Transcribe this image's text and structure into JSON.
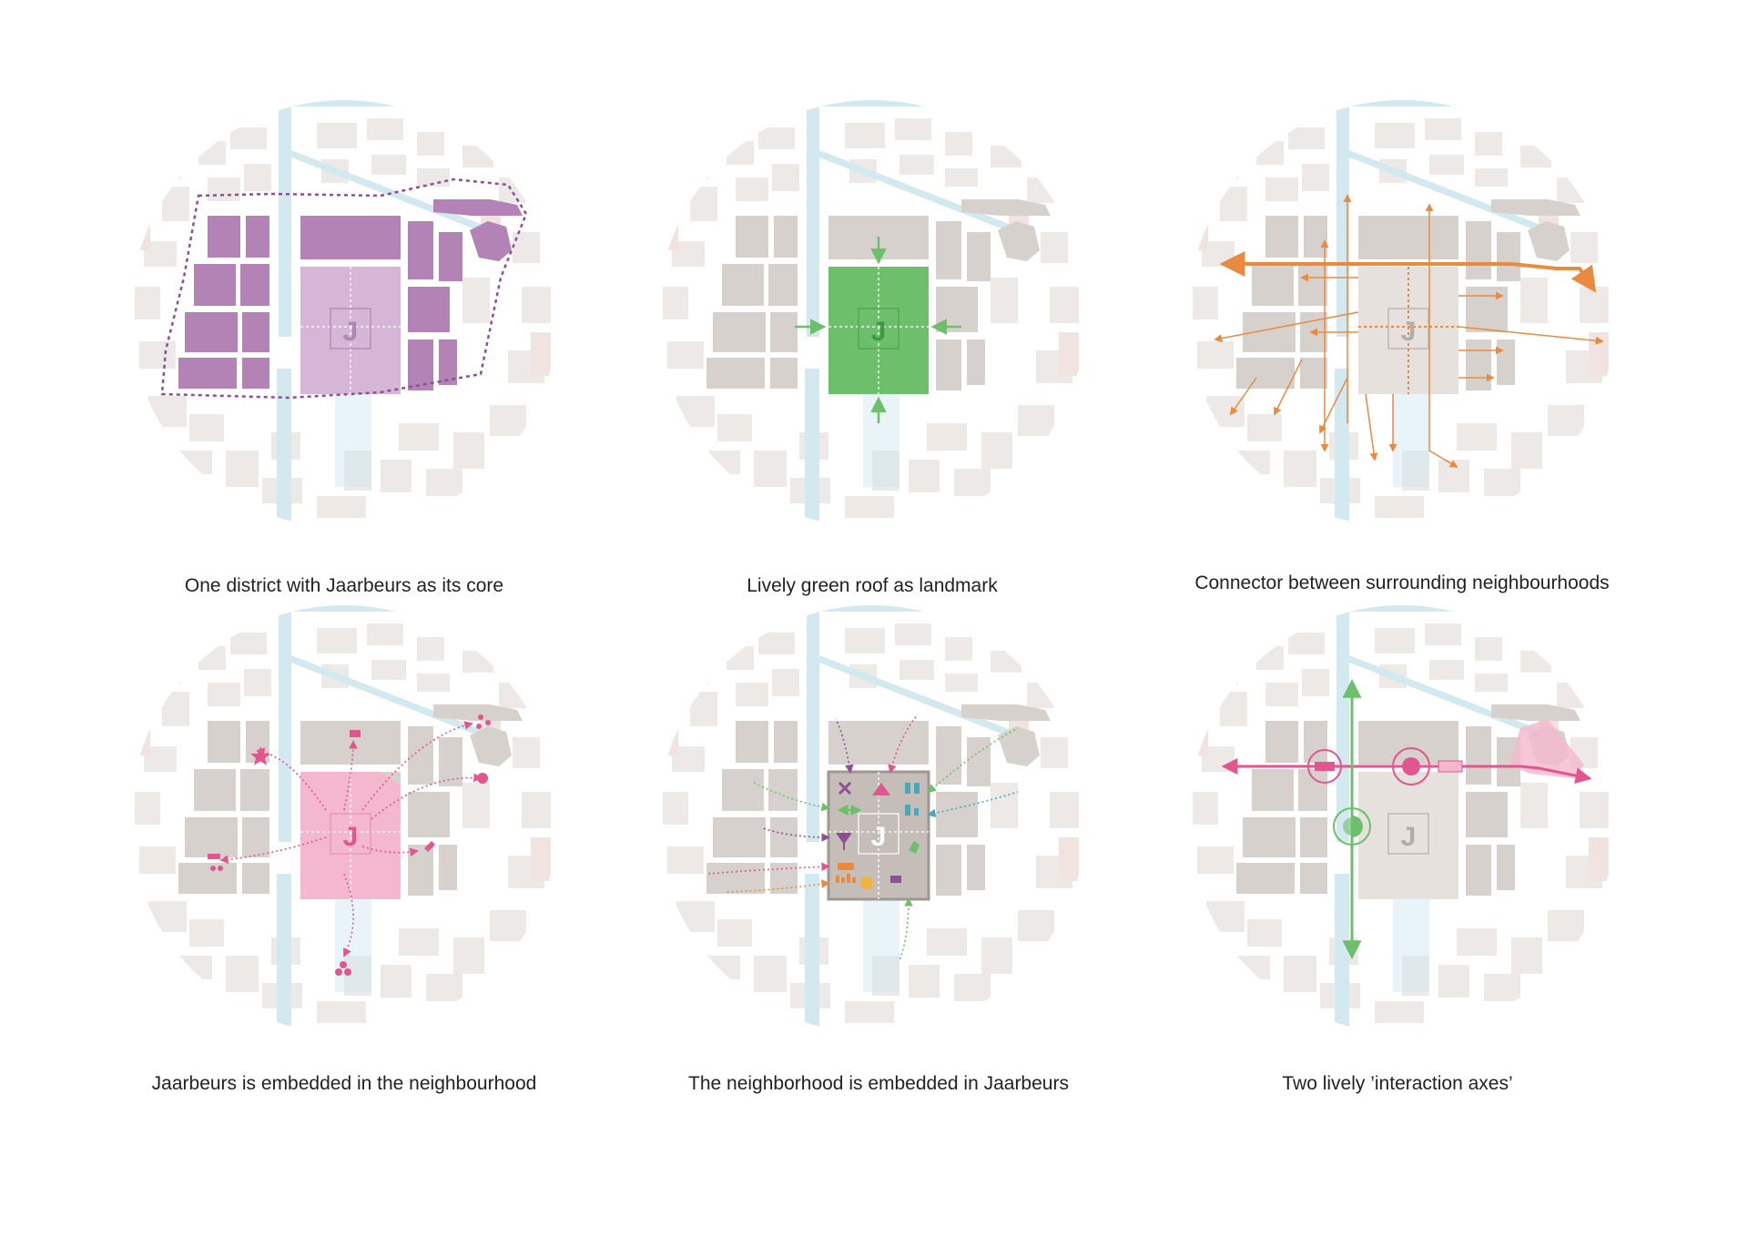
{
  "colors": {
    "background": "#ffffff",
    "context_light": "#ece9e6",
    "context_pink": "#f1e3e0",
    "water": "#d2e9f0",
    "building_grey": "#d6d1cc",
    "purple": "#b283b4",
    "purple_light": "#d5b6d7",
    "purple_dash": "#8f4f94",
    "green": "#6dbf6b",
    "orange": "#e98a3e",
    "pink": "#f4b8ce",
    "pink_dark": "#e2558f",
    "j_grey": "#b4aca6"
  },
  "j_letter": "J",
  "panels": [
    {
      "id": "one-district",
      "caption": "One district with Jaarbeurs as its core"
    },
    {
      "id": "green-roof",
      "caption": "Lively green roof as landmark"
    },
    {
      "id": "connector",
      "caption": "Connector between surrounding neighbourhoods"
    },
    {
      "id": "embedded-in-neighbourhood",
      "caption": "Jaarbeurs is embedded in the neighbourhood"
    },
    {
      "id": "neighborhood-embedded",
      "caption": "The neighborhood is embedded in Jaarbeurs"
    },
    {
      "id": "interaction-axes",
      "caption": "Two lively ’interaction axes’"
    }
  ]
}
